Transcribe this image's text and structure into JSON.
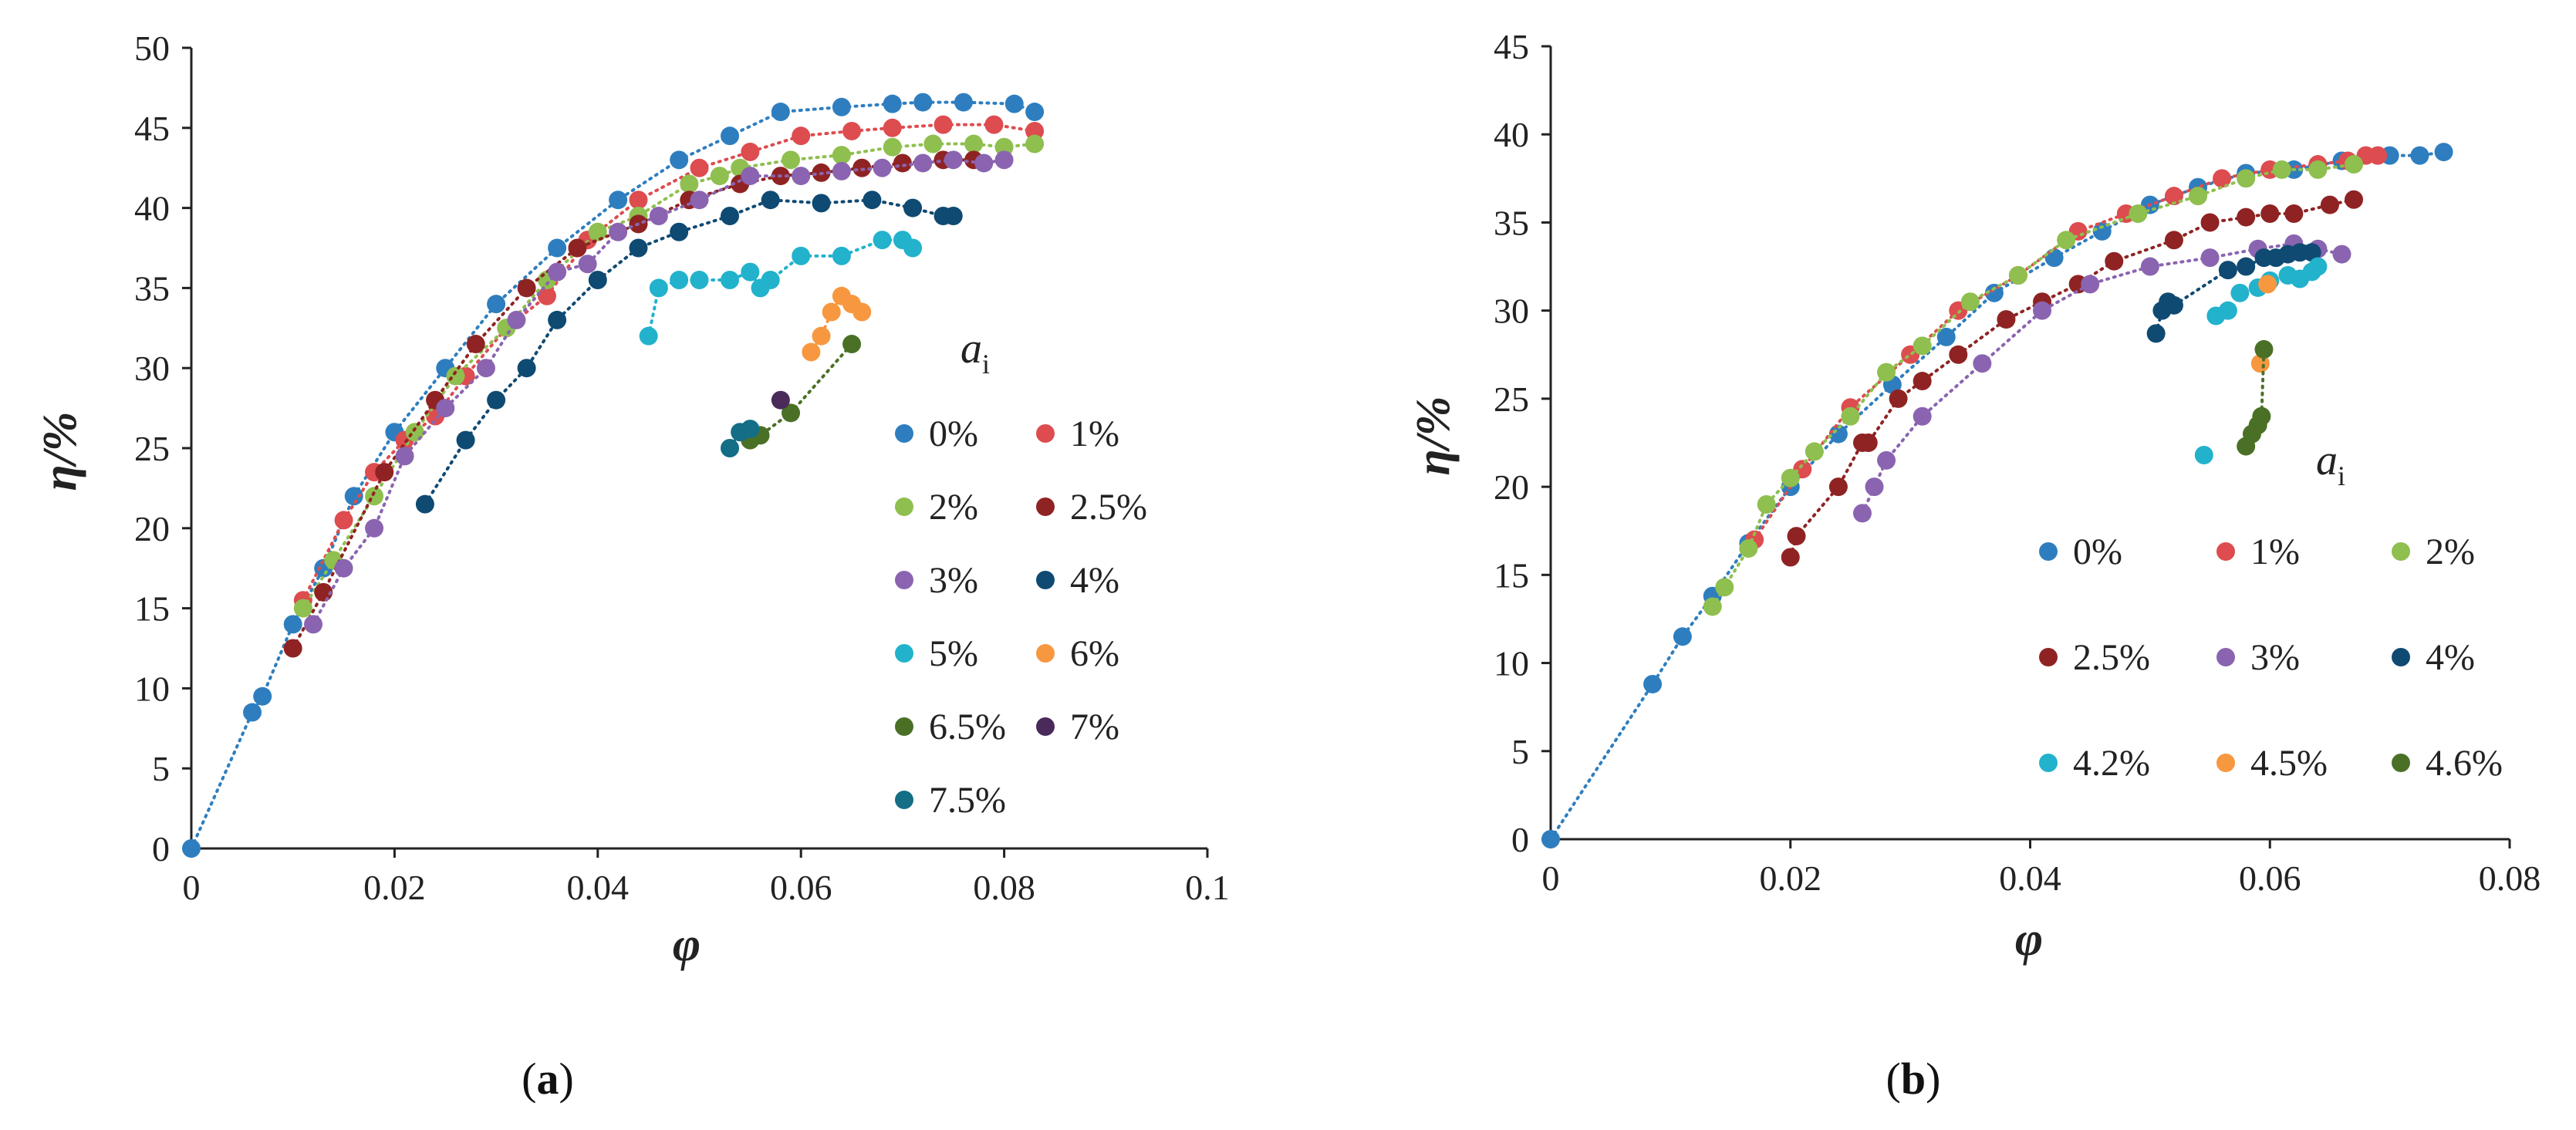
{
  "colors": {
    "0%": "#2e7ebf",
    "1%": "#dd4c4f",
    "2%": "#8fbf4f",
    "2.5%": "#8f2323",
    "3%": "#8a64b0",
    "4%": "#0f4a72",
    "5%": "#22b2cc",
    "6%": "#f7973f",
    "6.5%": "#4a7026",
    "7%": "#4a2a5a",
    "7.5%": "#136e86",
    "4.2%": "#22b2cc",
    "4.5%": "#f7973f",
    "4.6%": "#4a7026"
  },
  "chart_data": [
    {
      "type": "scatter",
      "panel_label": "(a)",
      "xlabel": "φ",
      "ylabel": "η/%",
      "xlim": [
        0,
        0.1
      ],
      "ylim": [
        0,
        50
      ],
      "xticks": [
        0,
        0.02,
        0.04,
        0.06,
        0.08,
        0.1
      ],
      "xtick_labels": [
        "0",
        "0.02",
        "0.04",
        "0.06",
        "0.08",
        "0.1"
      ],
      "yticks": [
        0,
        5,
        10,
        15,
        20,
        25,
        30,
        35,
        40,
        45,
        50
      ],
      "ytick_labels": [
        "0",
        "5",
        "10",
        "15",
        "20",
        "25",
        "30",
        "35",
        "40",
        "45",
        "50"
      ],
      "legend_title": "a",
      "legend_title_sub": "i",
      "legend_position": "right",
      "series": [
        {
          "name": "0%",
          "trend": true,
          "x": [
            0,
            0.006,
            0.007,
            0.01,
            0.013,
            0.016,
            0.02,
            0.025,
            0.03,
            0.036,
            0.042,
            0.048,
            0.053,
            0.058,
            0.064,
            0.069,
            0.072,
            0.076,
            0.081,
            0.083
          ],
          "y": [
            0,
            8.5,
            9.5,
            14,
            17.5,
            22,
            26,
            30,
            34,
            37.5,
            40.5,
            43,
            44.5,
            46,
            46.3,
            46.5,
            46.6,
            46.6,
            46.5,
            46
          ]
        },
        {
          "name": "1%",
          "trend": true,
          "x": [
            0.011,
            0.015,
            0.018,
            0.021,
            0.024,
            0.027,
            0.031,
            0.035,
            0.039,
            0.044,
            0.05,
            0.055,
            0.06,
            0.065,
            0.069,
            0.074,
            0.079,
            0.083
          ],
          "y": [
            15.5,
            20.5,
            23.5,
            25.5,
            27,
            29.5,
            32.5,
            34.5,
            38,
            40.5,
            42.5,
            43.5,
            44.5,
            44.8,
            45,
            45.2,
            45.2,
            44.8
          ]
        },
        {
          "name": "2%",
          "trend": true,
          "x": [
            0.011,
            0.014,
            0.018,
            0.022,
            0.026,
            0.031,
            0.035,
            0.04,
            0.044,
            0.049,
            0.052,
            0.054,
            0.059,
            0.064,
            0.069,
            0.073,
            0.077,
            0.08,
            0.083
          ],
          "y": [
            15,
            18,
            22,
            26,
            29.5,
            32.5,
            35.5,
            38.5,
            39.5,
            41.5,
            42,
            42.5,
            43,
            43.3,
            43.8,
            44,
            44,
            43.8,
            44
          ]
        },
        {
          "name": "2.5%",
          "trend": true,
          "x": [
            0.01,
            0.013,
            0.019,
            0.024,
            0.028,
            0.033,
            0.038,
            0.044,
            0.049,
            0.054,
            0.058,
            0.062,
            0.066,
            0.07,
            0.074,
            0.077
          ],
          "y": [
            12.5,
            16,
            23.5,
            28,
            31.5,
            35,
            37.5,
            39,
            40.5,
            41.5,
            42,
            42.2,
            42.5,
            42.8,
            43,
            43
          ]
        },
        {
          "name": "3%",
          "trend": true,
          "x": [
            0.012,
            0.015,
            0.018,
            0.021,
            0.025,
            0.029,
            0.032,
            0.036,
            0.039,
            0.042,
            0.046,
            0.05,
            0.055,
            0.06,
            0.064,
            0.068,
            0.072,
            0.075,
            0.078,
            0.08
          ],
          "y": [
            14,
            17.5,
            20,
            24.5,
            27.5,
            30,
            33,
            36,
            36.5,
            38.5,
            39.5,
            40.5,
            42,
            42,
            42.3,
            42.5,
            42.8,
            43,
            42.8,
            43
          ]
        },
        {
          "name": "4%",
          "trend": true,
          "x": [
            0.023,
            0.027,
            0.03,
            0.033,
            0.036,
            0.04,
            0.044,
            0.048,
            0.053,
            0.057,
            0.062,
            0.067,
            0.071,
            0.074,
            0.075
          ],
          "y": [
            21.5,
            25.5,
            28,
            30,
            33,
            35.5,
            37.5,
            38.5,
            39.5,
            40.5,
            40.3,
            40.5,
            40,
            39.5,
            39.5
          ]
        },
        {
          "name": "5%",
          "trend": true,
          "x": [
            0.045,
            0.046,
            0.048,
            0.05,
            0.053,
            0.055,
            0.056,
            0.057,
            0.06,
            0.064,
            0.068,
            0.07,
            0.071
          ],
          "y": [
            32,
            35,
            35.5,
            35.5,
            35.5,
            36,
            35,
            35.5,
            37,
            37,
            38,
            38,
            37.5
          ]
        },
        {
          "name": "6%",
          "trend": true,
          "x": [
            0.061,
            0.062,
            0.063,
            0.064,
            0.065,
            0.066
          ],
          "y": [
            31,
            32,
            33.5,
            34.5,
            34,
            33.5
          ]
        },
        {
          "name": "6.5%",
          "trend": true,
          "x": [
            0.055,
            0.056,
            0.059,
            0.065
          ],
          "y": [
            25.5,
            25.8,
            27.2,
            31.5
          ]
        },
        {
          "name": "7%",
          "trend": false,
          "x": [
            0.058
          ],
          "y": [
            28
          ]
        },
        {
          "name": "7.5%",
          "trend": true,
          "x": [
            0.053,
            0.054,
            0.055
          ],
          "y": [
            25,
            26,
            26.2
          ]
        }
      ]
    },
    {
      "type": "scatter",
      "panel_label": "(b)",
      "xlabel": "φ",
      "ylabel": "η/%",
      "xlim": [
        0,
        0.08
      ],
      "ylim": [
        0,
        45
      ],
      "xticks": [
        0,
        0.02,
        0.04,
        0.06,
        0.08
      ],
      "xtick_labels": [
        "0",
        "0.02",
        "0.04",
        "0.06",
        "0.08"
      ],
      "yticks": [
        0,
        5,
        10,
        15,
        20,
        25,
        30,
        35,
        40,
        45
      ],
      "ytick_labels": [
        "0",
        "5",
        "10",
        "15",
        "20",
        "25",
        "30",
        "35",
        "40",
        "45"
      ],
      "legend_title": "a",
      "legend_title_sub": "i",
      "legend_position": "right",
      "series": [
        {
          "name": "0%",
          "trend": true,
          "x": [
            0,
            0.0085,
            0.011,
            0.0135,
            0.0165,
            0.02,
            0.024,
            0.0285,
            0.033,
            0.037,
            0.042,
            0.046,
            0.05,
            0.054,
            0.058,
            0.062,
            0.066,
            0.07,
            0.0725,
            0.0745
          ],
          "y": [
            0,
            8.8,
            11.5,
            13.8,
            16.8,
            20,
            23,
            25.8,
            28.5,
            31,
            33,
            34.5,
            36,
            37,
            37.8,
            38,
            38.5,
            38.8,
            38.8,
            39
          ]
        },
        {
          "name": "1%",
          "trend": true,
          "x": [
            0.017,
            0.021,
            0.025,
            0.03,
            0.034,
            0.039,
            0.044,
            0.048,
            0.052,
            0.056,
            0.06,
            0.064,
            0.0665,
            0.068,
            0.069
          ],
          "y": [
            17,
            21,
            24.5,
            27.5,
            30,
            32,
            34.5,
            35.5,
            36.5,
            37.5,
            38,
            38.3,
            38.5,
            38.8,
            38.8
          ]
        },
        {
          "name": "2%",
          "trend": true,
          "x": [
            0.0135,
            0.0145,
            0.0165,
            0.018,
            0.02,
            0.022,
            0.025,
            0.028,
            0.031,
            0.035,
            0.039,
            0.043,
            0.049,
            0.054,
            0.058,
            0.061,
            0.064,
            0.067
          ],
          "y": [
            13.2,
            14.3,
            16.5,
            19,
            20.5,
            22,
            24,
            26.5,
            28,
            30.5,
            32,
            34,
            35.5,
            36.5,
            37.5,
            38,
            38,
            38.3
          ]
        },
        {
          "name": "2.5%",
          "trend": true,
          "x": [
            0.02,
            0.0205,
            0.024,
            0.026,
            0.0265,
            0.029,
            0.031,
            0.034,
            0.038,
            0.041,
            0.044,
            0.047,
            0.052,
            0.055,
            0.058,
            0.06,
            0.062,
            0.065,
            0.067
          ],
          "y": [
            16,
            17.2,
            20,
            22.5,
            22.5,
            25,
            26,
            27.5,
            29.5,
            30.5,
            31.5,
            32.8,
            34,
            35,
            35.3,
            35.5,
            35.5,
            36,
            36.3
          ]
        },
        {
          "name": "3%",
          "trend": true,
          "x": [
            0.026,
            0.027,
            0.028,
            0.031,
            0.036,
            0.041,
            0.045,
            0.05,
            0.055,
            0.059,
            0.062,
            0.064,
            0.066
          ],
          "y": [
            18.5,
            20,
            21.5,
            24,
            27,
            30,
            31.5,
            32.5,
            33,
            33.5,
            33.8,
            33.5,
            33.2
          ]
        },
        {
          "name": "4%",
          "trend": true,
          "x": [
            0.0505,
            0.051,
            0.0515,
            0.052,
            0.0565,
            0.058,
            0.0595,
            0.0605,
            0.0615,
            0.0625,
            0.0635
          ],
          "y": [
            28.7,
            30,
            30.5,
            30.3,
            32.3,
            32.5,
            33,
            33,
            33.2,
            33.3,
            33.3
          ]
        },
        {
          "name": "4.2%",
          "trend": false,
          "x": [
            0.0545,
            0.0555,
            0.0565,
            0.0575,
            0.059,
            0.06,
            0.0615,
            0.0625,
            0.0635,
            0.064
          ],
          "y": [
            21.8,
            29.7,
            30,
            31,
            31.3,
            31.7,
            32,
            31.8,
            32.2,
            32.5
          ]
        },
        {
          "name": "4.5%",
          "trend": false,
          "x": [
            0.0592,
            0.0598
          ],
          "y": [
            27,
            31.5
          ]
        },
        {
          "name": "4.6%",
          "trend": true,
          "x": [
            0.058,
            0.0585,
            0.059,
            0.0593,
            0.0595
          ],
          "y": [
            22.3,
            23,
            23.5,
            24,
            27.8
          ]
        }
      ]
    }
  ]
}
